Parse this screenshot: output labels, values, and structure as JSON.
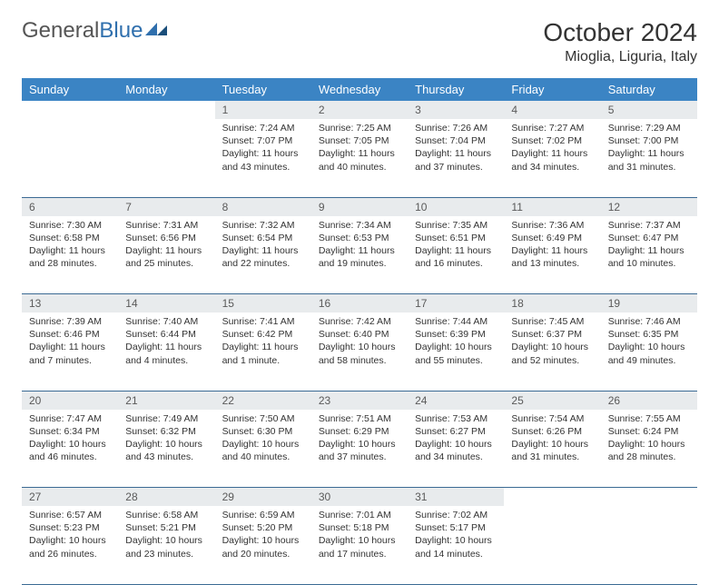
{
  "brand": {
    "part1": "General",
    "part2": "Blue"
  },
  "title": "October 2024",
  "location": "Mioglia, Liguria, Italy",
  "colors": {
    "header_bg": "#3b84c4",
    "header_text": "#ffffff",
    "daynum_bg": "#e8ebed",
    "border": "#3b6a94",
    "logo_gray": "#777777",
    "logo_blue": "#2f6fad"
  },
  "weekdays": [
    "Sunday",
    "Monday",
    "Tuesday",
    "Wednesday",
    "Thursday",
    "Friday",
    "Saturday"
  ],
  "weeks": [
    [
      null,
      null,
      {
        "n": "1",
        "sr": "7:24 AM",
        "ss": "7:07 PM",
        "dl": "11 hours and 43 minutes."
      },
      {
        "n": "2",
        "sr": "7:25 AM",
        "ss": "7:05 PM",
        "dl": "11 hours and 40 minutes."
      },
      {
        "n": "3",
        "sr": "7:26 AM",
        "ss": "7:04 PM",
        "dl": "11 hours and 37 minutes."
      },
      {
        "n": "4",
        "sr": "7:27 AM",
        "ss": "7:02 PM",
        "dl": "11 hours and 34 minutes."
      },
      {
        "n": "5",
        "sr": "7:29 AM",
        "ss": "7:00 PM",
        "dl": "11 hours and 31 minutes."
      }
    ],
    [
      {
        "n": "6",
        "sr": "7:30 AM",
        "ss": "6:58 PM",
        "dl": "11 hours and 28 minutes."
      },
      {
        "n": "7",
        "sr": "7:31 AM",
        "ss": "6:56 PM",
        "dl": "11 hours and 25 minutes."
      },
      {
        "n": "8",
        "sr": "7:32 AM",
        "ss": "6:54 PM",
        "dl": "11 hours and 22 minutes."
      },
      {
        "n": "9",
        "sr": "7:34 AM",
        "ss": "6:53 PM",
        "dl": "11 hours and 19 minutes."
      },
      {
        "n": "10",
        "sr": "7:35 AM",
        "ss": "6:51 PM",
        "dl": "11 hours and 16 minutes."
      },
      {
        "n": "11",
        "sr": "7:36 AM",
        "ss": "6:49 PM",
        "dl": "11 hours and 13 minutes."
      },
      {
        "n": "12",
        "sr": "7:37 AM",
        "ss": "6:47 PM",
        "dl": "11 hours and 10 minutes."
      }
    ],
    [
      {
        "n": "13",
        "sr": "7:39 AM",
        "ss": "6:46 PM",
        "dl": "11 hours and 7 minutes."
      },
      {
        "n": "14",
        "sr": "7:40 AM",
        "ss": "6:44 PM",
        "dl": "11 hours and 4 minutes."
      },
      {
        "n": "15",
        "sr": "7:41 AM",
        "ss": "6:42 PM",
        "dl": "11 hours and 1 minute."
      },
      {
        "n": "16",
        "sr": "7:42 AM",
        "ss": "6:40 PM",
        "dl": "10 hours and 58 minutes."
      },
      {
        "n": "17",
        "sr": "7:44 AM",
        "ss": "6:39 PM",
        "dl": "10 hours and 55 minutes."
      },
      {
        "n": "18",
        "sr": "7:45 AM",
        "ss": "6:37 PM",
        "dl": "10 hours and 52 minutes."
      },
      {
        "n": "19",
        "sr": "7:46 AM",
        "ss": "6:35 PM",
        "dl": "10 hours and 49 minutes."
      }
    ],
    [
      {
        "n": "20",
        "sr": "7:47 AM",
        "ss": "6:34 PM",
        "dl": "10 hours and 46 minutes."
      },
      {
        "n": "21",
        "sr": "7:49 AM",
        "ss": "6:32 PM",
        "dl": "10 hours and 43 minutes."
      },
      {
        "n": "22",
        "sr": "7:50 AM",
        "ss": "6:30 PM",
        "dl": "10 hours and 40 minutes."
      },
      {
        "n": "23",
        "sr": "7:51 AM",
        "ss": "6:29 PM",
        "dl": "10 hours and 37 minutes."
      },
      {
        "n": "24",
        "sr": "7:53 AM",
        "ss": "6:27 PM",
        "dl": "10 hours and 34 minutes."
      },
      {
        "n": "25",
        "sr": "7:54 AM",
        "ss": "6:26 PM",
        "dl": "10 hours and 31 minutes."
      },
      {
        "n": "26",
        "sr": "7:55 AM",
        "ss": "6:24 PM",
        "dl": "10 hours and 28 minutes."
      }
    ],
    [
      {
        "n": "27",
        "sr": "6:57 AM",
        "ss": "5:23 PM",
        "dl": "10 hours and 26 minutes."
      },
      {
        "n": "28",
        "sr": "6:58 AM",
        "ss": "5:21 PM",
        "dl": "10 hours and 23 minutes."
      },
      {
        "n": "29",
        "sr": "6:59 AM",
        "ss": "5:20 PM",
        "dl": "10 hours and 20 minutes."
      },
      {
        "n": "30",
        "sr": "7:01 AM",
        "ss": "5:18 PM",
        "dl": "10 hours and 17 minutes."
      },
      {
        "n": "31",
        "sr": "7:02 AM",
        "ss": "5:17 PM",
        "dl": "10 hours and 14 minutes."
      },
      null,
      null
    ]
  ],
  "labels": {
    "sunrise": "Sunrise: ",
    "sunset": "Sunset: ",
    "daylight": "Daylight: "
  }
}
